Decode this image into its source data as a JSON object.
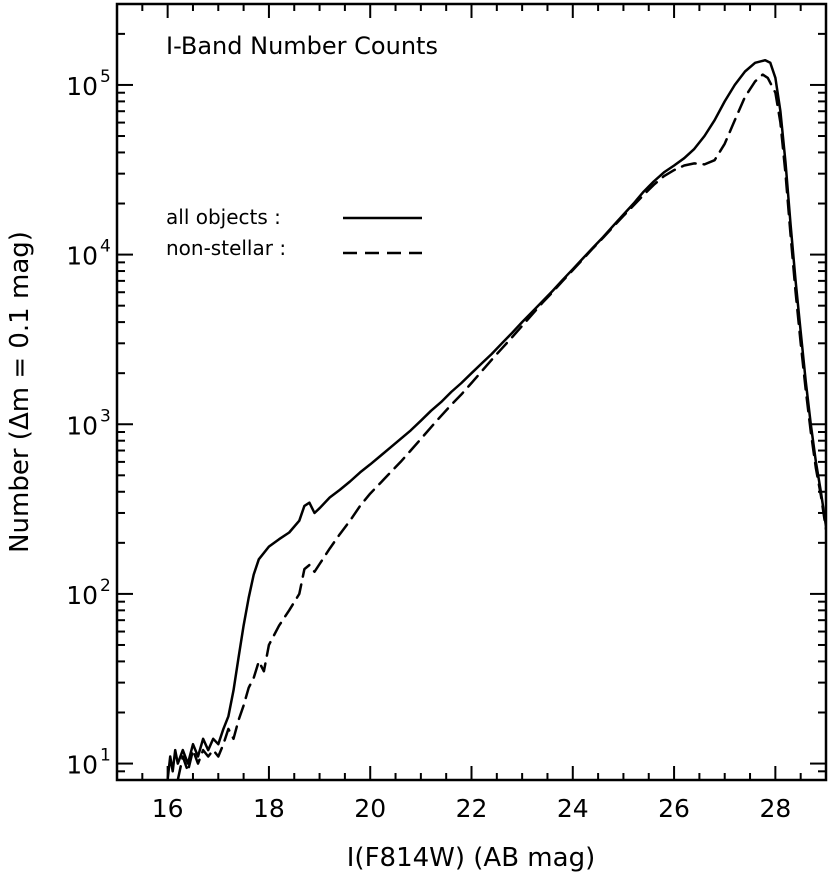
{
  "chart_data": {
    "type": "line",
    "title": "I-Band Number Counts",
    "xlabel": "I(F814W) (AB mag)",
    "ylabel": "Number (Δm = 0.1 mag)",
    "xlim": [
      15,
      29
    ],
    "ylim": [
      8,
      300000
    ],
    "yscale": "log",
    "grid": false,
    "legend_position": "upper-left",
    "x_ticks": [
      16,
      18,
      20,
      22,
      24,
      26,
      28
    ],
    "x_tick_labels": [
      "16",
      "18",
      "20",
      "22",
      "24",
      "26",
      "28"
    ],
    "y_ticks": [
      {
        "value": 10,
        "base": "10",
        "exp": "1"
      },
      {
        "value": 100,
        "base": "10",
        "exp": "2"
      },
      {
        "value": 1000,
        "base": "10",
        "exp": "3"
      },
      {
        "value": 10000,
        "base": "10",
        "exp": "4"
      },
      {
        "value": 100000,
        "base": "10",
        "exp": "5"
      }
    ],
    "series": [
      {
        "name": "all objects :",
        "style": "solid",
        "color": "#000000",
        "points": [
          [
            16.0,
            8
          ],
          [
            16.05,
            11
          ],
          [
            16.1,
            9
          ],
          [
            16.15,
            12
          ],
          [
            16.2,
            10
          ],
          [
            16.3,
            12
          ],
          [
            16.4,
            10
          ],
          [
            16.5,
            13
          ],
          [
            16.6,
            11
          ],
          [
            16.7,
            14
          ],
          [
            16.8,
            12
          ],
          [
            16.9,
            14
          ],
          [
            17.0,
            13
          ],
          [
            17.1,
            16
          ],
          [
            17.2,
            19
          ],
          [
            17.3,
            27
          ],
          [
            17.4,
            42
          ],
          [
            17.5,
            65
          ],
          [
            17.6,
            95
          ],
          [
            17.7,
            130
          ],
          [
            17.8,
            160
          ],
          [
            18.0,
            190
          ],
          [
            18.2,
            210
          ],
          [
            18.4,
            230
          ],
          [
            18.6,
            270
          ],
          [
            18.7,
            330
          ],
          [
            18.8,
            345
          ],
          [
            18.9,
            300
          ],
          [
            19.0,
            320
          ],
          [
            19.2,
            370
          ],
          [
            19.4,
            410
          ],
          [
            19.6,
            460
          ],
          [
            19.8,
            520
          ],
          [
            20.0,
            580
          ],
          [
            20.2,
            650
          ],
          [
            20.4,
            730
          ],
          [
            20.6,
            820
          ],
          [
            20.8,
            920
          ],
          [
            21.0,
            1050
          ],
          [
            21.2,
            1200
          ],
          [
            21.4,
            1350
          ],
          [
            21.6,
            1550
          ],
          [
            21.8,
            1750
          ],
          [
            22.0,
            2000
          ],
          [
            22.2,
            2280
          ],
          [
            22.4,
            2600
          ],
          [
            22.6,
            3000
          ],
          [
            22.8,
            3450
          ],
          [
            23.0,
            4000
          ],
          [
            23.2,
            4600
          ],
          [
            23.4,
            5300
          ],
          [
            23.6,
            6100
          ],
          [
            23.8,
            7100
          ],
          [
            24.0,
            8200
          ],
          [
            24.2,
            9500
          ],
          [
            24.4,
            11000
          ],
          [
            24.6,
            12700
          ],
          [
            24.8,
            14800
          ],
          [
            25.0,
            17200
          ],
          [
            25.2,
            20000
          ],
          [
            25.4,
            23500
          ],
          [
            25.6,
            27000
          ],
          [
            25.8,
            30500
          ],
          [
            26.0,
            33500
          ],
          [
            26.2,
            37000
          ],
          [
            26.4,
            42000
          ],
          [
            26.6,
            50000
          ],
          [
            26.8,
            62000
          ],
          [
            27.0,
            80000
          ],
          [
            27.2,
            100000
          ],
          [
            27.4,
            120000
          ],
          [
            27.6,
            135000
          ],
          [
            27.8,
            140000
          ],
          [
            27.9,
            135000
          ],
          [
            28.0,
            110000
          ],
          [
            28.1,
            70000
          ],
          [
            28.2,
            35000
          ],
          [
            28.3,
            15000
          ],
          [
            28.4,
            7000
          ],
          [
            28.5,
            3500
          ],
          [
            28.6,
            1800
          ],
          [
            28.7,
            1000
          ],
          [
            28.8,
            600
          ],
          [
            28.9,
            400
          ],
          [
            29.0,
            250
          ]
        ]
      },
      {
        "name": "non-stellar :",
        "style": "dashed",
        "color": "#000000",
        "points": [
          [
            16.2,
            8
          ],
          [
            16.3,
            11
          ],
          [
            16.4,
            9
          ],
          [
            16.5,
            12
          ],
          [
            16.6,
            10
          ],
          [
            16.7,
            12
          ],
          [
            16.8,
            11
          ],
          [
            16.9,
            12
          ],
          [
            17.0,
            11
          ],
          [
            17.1,
            13
          ],
          [
            17.2,
            16
          ],
          [
            17.3,
            14
          ],
          [
            17.4,
            18
          ],
          [
            17.5,
            22
          ],
          [
            17.6,
            28
          ],
          [
            17.7,
            32
          ],
          [
            17.8,
            40
          ],
          [
            17.9,
            35
          ],
          [
            18.0,
            50
          ],
          [
            18.2,
            65
          ],
          [
            18.4,
            80
          ],
          [
            18.6,
            100
          ],
          [
            18.7,
            140
          ],
          [
            18.8,
            148
          ],
          [
            18.9,
            135
          ],
          [
            19.0,
            150
          ],
          [
            19.2,
            185
          ],
          [
            19.4,
            225
          ],
          [
            19.6,
            270
          ],
          [
            19.8,
            330
          ],
          [
            20.0,
            390
          ],
          [
            20.2,
            450
          ],
          [
            20.4,
            520
          ],
          [
            20.6,
            600
          ],
          [
            20.8,
            700
          ],
          [
            21.0,
            820
          ],
          [
            21.2,
            960
          ],
          [
            21.4,
            1120
          ],
          [
            21.6,
            1300
          ],
          [
            21.8,
            1500
          ],
          [
            22.0,
            1750
          ],
          [
            22.2,
            2050
          ],
          [
            22.4,
            2400
          ],
          [
            22.6,
            2800
          ],
          [
            22.8,
            3250
          ],
          [
            23.0,
            3800
          ],
          [
            23.2,
            4450
          ],
          [
            23.4,
            5200
          ],
          [
            23.6,
            6000
          ],
          [
            23.8,
            7000
          ],
          [
            24.0,
            8100
          ],
          [
            24.2,
            9400
          ],
          [
            24.4,
            10900
          ],
          [
            24.6,
            12600
          ],
          [
            24.8,
            14600
          ],
          [
            25.0,
            16900
          ],
          [
            25.2,
            19500
          ],
          [
            25.4,
            22500
          ],
          [
            25.6,
            25800
          ],
          [
            25.8,
            29000
          ],
          [
            26.0,
            31500
          ],
          [
            26.2,
            33500
          ],
          [
            26.4,
            34500
          ],
          [
            26.6,
            34000
          ],
          [
            26.8,
            36000
          ],
          [
            27.0,
            45000
          ],
          [
            27.2,
            62000
          ],
          [
            27.4,
            85000
          ],
          [
            27.6,
            105000
          ],
          [
            27.75,
            115000
          ],
          [
            27.85,
            110000
          ],
          [
            28.0,
            90000
          ],
          [
            28.1,
            60000
          ],
          [
            28.2,
            30000
          ],
          [
            28.3,
            13000
          ],
          [
            28.4,
            6000
          ],
          [
            28.5,
            3000
          ],
          [
            28.6,
            1600
          ],
          [
            28.7,
            900
          ],
          [
            28.8,
            550
          ],
          [
            28.9,
            380
          ],
          [
            29.0,
            240
          ]
        ]
      }
    ]
  }
}
